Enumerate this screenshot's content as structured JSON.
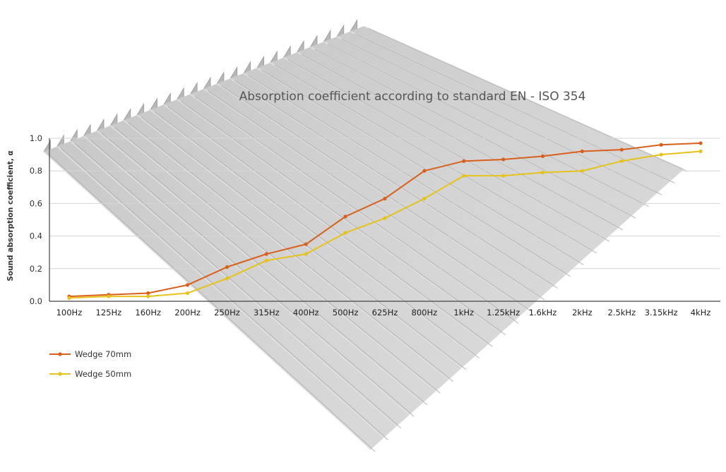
{
  "chart_data": {
    "type": "line",
    "title": "Absorption coefficient according to standard EN - ISO 354",
    "xlabel": "",
    "ylabel": "Sound absorption coefficient, α",
    "ylim": [
      0,
      1.0
    ],
    "yticks": [
      "0.0",
      "0.2",
      "0.4",
      "0.6",
      "0.8",
      "1.0"
    ],
    "grid": true,
    "legend_position": "bottom-left",
    "categories": [
      "100Hz",
      "125Hz",
      "160Hz",
      "200Hz",
      "250Hz",
      "315Hz",
      "400Hz",
      "500Hz",
      "625Hz",
      "800Hz",
      "1kHz",
      "1.25kHz",
      "1.6kHz",
      "2kHz",
      "2.5kHz",
      "3.15kHz",
      "4kHz"
    ],
    "series": [
      {
        "name": "Wedge 70mm",
        "color": "#d9601c",
        "values": [
          0.03,
          0.04,
          0.05,
          0.1,
          0.21,
          0.29,
          0.35,
          0.52,
          0.63,
          0.8,
          0.86,
          0.87,
          0.89,
          0.92,
          0.93,
          0.96,
          0.97
        ]
      },
      {
        "name": "Wedge 50mm",
        "color": "#e6c21a",
        "values": [
          0.02,
          0.03,
          0.03,
          0.05,
          0.14,
          0.25,
          0.29,
          0.42,
          0.51,
          0.63,
          0.77,
          0.77,
          0.79,
          0.8,
          0.86,
          0.9,
          0.92
        ]
      }
    ]
  },
  "background": {
    "image": "grey wedge acoustic foam panel",
    "color": "#c8c8c8"
  }
}
